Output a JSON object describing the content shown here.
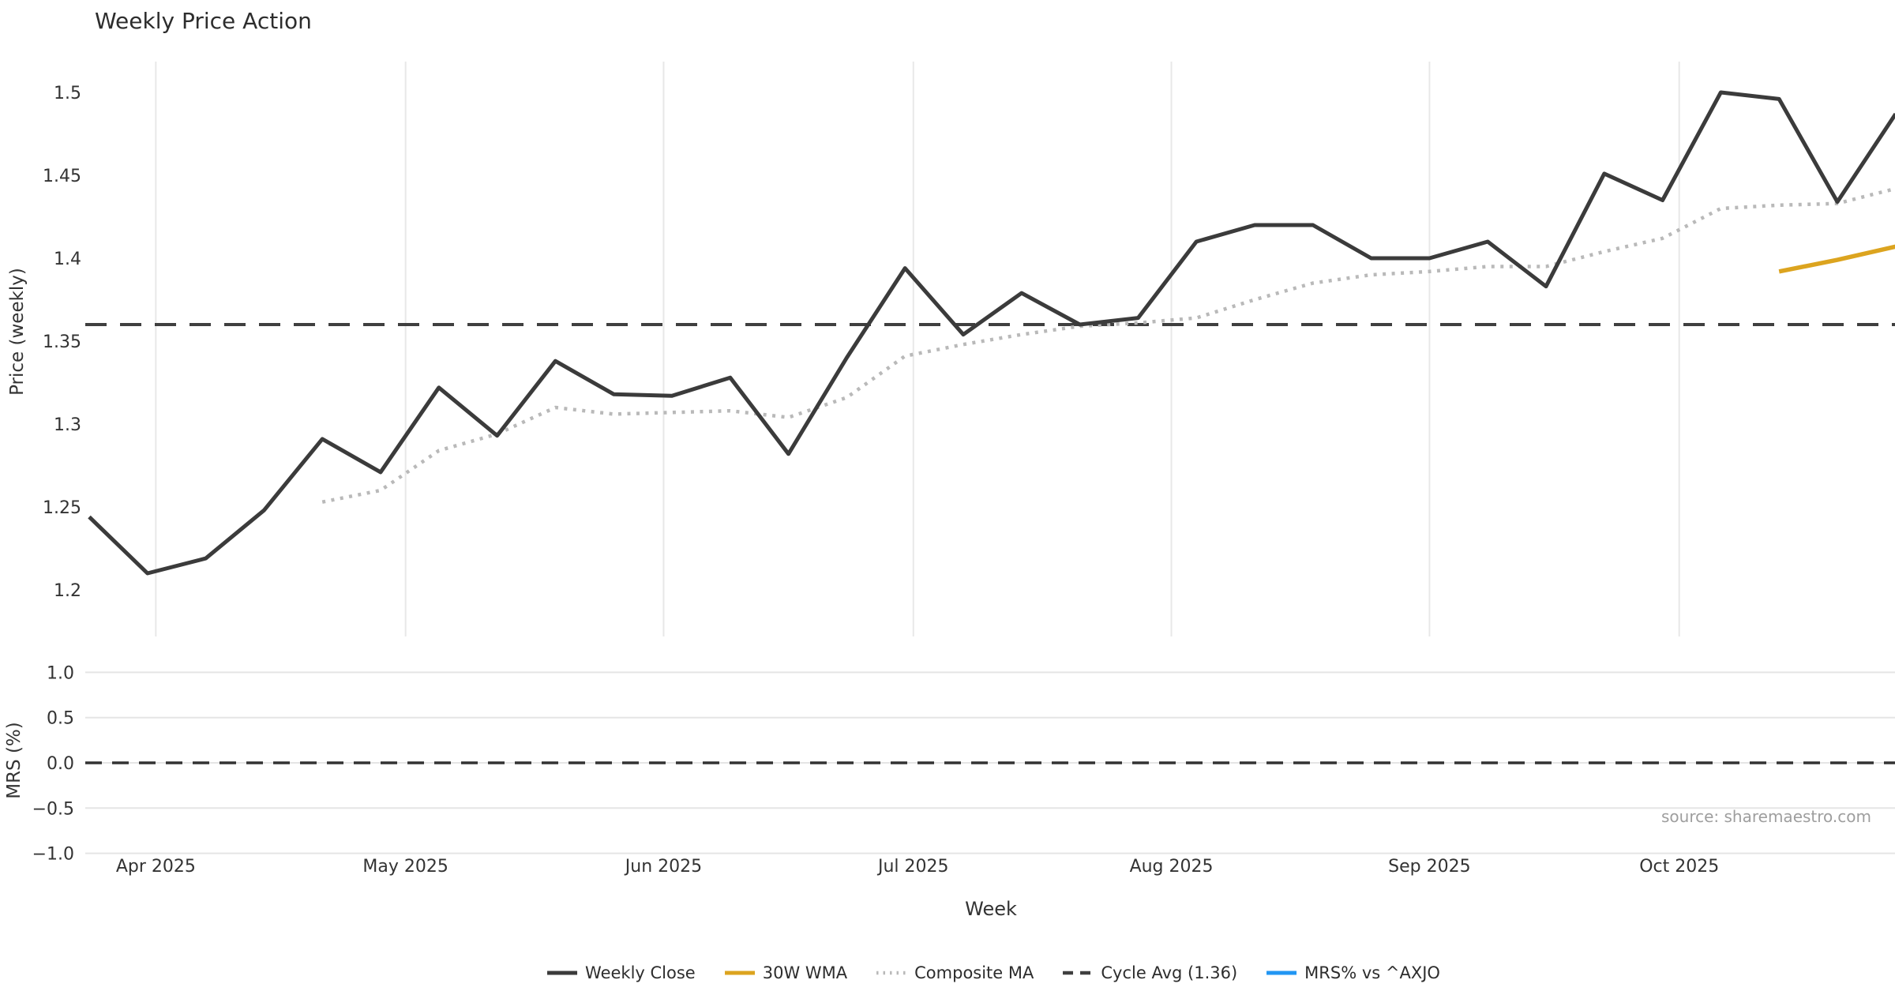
{
  "title": "Weekly Price Action",
  "axes": {
    "price_ylabel": "Price (weekly)",
    "mrs_ylabel": "MRS (%)",
    "xlabel": "Week"
  },
  "source_credit": "source: sharemaestro.com",
  "legend": {
    "items": [
      {
        "label": "Weekly Close",
        "color": "#3b3b3b",
        "style": "solid"
      },
      {
        "label": "30W WMA",
        "color": "#dca41f",
        "style": "solid"
      },
      {
        "label": "Composite MA",
        "color": "#b9b9b9",
        "style": "dotted"
      },
      {
        "label": "Cycle Avg (1.36)",
        "color": "#3f3f3f",
        "style": "dashed"
      },
      {
        "label": "MRS% vs ^AXJO",
        "color": "#2196f3",
        "style": "solid"
      }
    ]
  },
  "chart_data": [
    {
      "type": "line",
      "panel": "price",
      "title": "Weekly Price Action",
      "xlabel": "Week",
      "ylabel": "Price (weekly)",
      "grid": "vertical-only",
      "x_unit": "weekly points, 32 consecutive weeks ending late Oct 2025",
      "xlim_weeks": [
        0,
        31
      ],
      "ylim": [
        1.17,
        1.52
      ],
      "month_ticks": [
        {
          "label": "Apr 2025",
          "week_pos": 1.143
        },
        {
          "label": "May 2025",
          "week_pos": 5.429
        },
        {
          "label": "Jun 2025",
          "week_pos": 9.857
        },
        {
          "label": "Jul 2025",
          "week_pos": 14.143
        },
        {
          "label": "Aug 2025",
          "week_pos": 18.571
        },
        {
          "label": "Sep 2025",
          "week_pos": 23.0
        },
        {
          "label": "Oct 2025",
          "week_pos": 27.286
        }
      ],
      "y_ticks": [
        {
          "v": 1.2,
          "label": "1.2"
        },
        {
          "v": 1.25,
          "label": "1.25"
        },
        {
          "v": 1.3,
          "label": "1.3"
        },
        {
          "v": 1.35,
          "label": "1.35"
        },
        {
          "v": 1.4,
          "label": "1.4"
        },
        {
          "v": 1.45,
          "label": "1.45"
        },
        {
          "v": 1.5,
          "label": "1.5"
        }
      ],
      "series": [
        {
          "name": "Weekly Close",
          "color": "#3b3b3b",
          "style": "solid",
          "width": 5,
          "start_week": 0,
          "values": [
            1.244,
            1.21,
            1.219,
            1.248,
            1.291,
            1.271,
            1.322,
            1.293,
            1.338,
            1.318,
            1.317,
            1.328,
            1.282,
            1.34,
            1.394,
            1.354,
            1.379,
            1.36,
            1.364,
            1.41,
            1.42,
            1.42,
            1.4,
            1.4,
            1.41,
            1.383,
            1.451,
            1.435,
            1.5,
            1.496,
            1.434,
            1.487
          ]
        },
        {
          "name": "Composite MA",
          "color": "#b9b9b9",
          "style": "dotted",
          "width": 4.5,
          "start_week": 4,
          "values": [
            1.253,
            1.26,
            1.284,
            1.294,
            1.31,
            1.306,
            1.307,
            1.308,
            1.304,
            1.316,
            1.341,
            1.348,
            1.354,
            1.359,
            1.361,
            1.364,
            1.375,
            1.385,
            1.39,
            1.392,
            1.395,
            1.395,
            1.404,
            1.412,
            1.43,
            1.432,
            1.433,
            1.442
          ]
        },
        {
          "name": "30W WMA",
          "color": "#dca41f",
          "style": "solid",
          "width": 5.5,
          "start_week": 29,
          "values": [
            1.392,
            1.399,
            1.407
          ]
        },
        {
          "name": "Cycle Avg (1.36)",
          "color": "#3f3f3f",
          "style": "dashed",
          "width": 4,
          "constant": 1.36
        }
      ]
    },
    {
      "type": "line",
      "panel": "mrs",
      "ylabel": "MRS (%)",
      "grid": "horizontal-only",
      "ylim": [
        -1.15,
        1.15
      ],
      "y_ticks": [
        {
          "v": -1.0,
          "label": "−1.0"
        },
        {
          "v": -0.5,
          "label": "−0.5"
        },
        {
          "v": 0.0,
          "label": "0.0"
        },
        {
          "v": 0.5,
          "label": "0.5"
        },
        {
          "v": 1.0,
          "label": "1.0"
        }
      ],
      "series": [
        {
          "name": "Zero Line",
          "color": "#333333",
          "style": "dashed",
          "width": 3.5,
          "constant": 0.0
        },
        {
          "name": "MRS% vs ^AXJO",
          "color": "#2196f3",
          "style": "solid",
          "width": 4,
          "values": [],
          "note": "no visible data plotted in panel"
        }
      ]
    }
  ]
}
